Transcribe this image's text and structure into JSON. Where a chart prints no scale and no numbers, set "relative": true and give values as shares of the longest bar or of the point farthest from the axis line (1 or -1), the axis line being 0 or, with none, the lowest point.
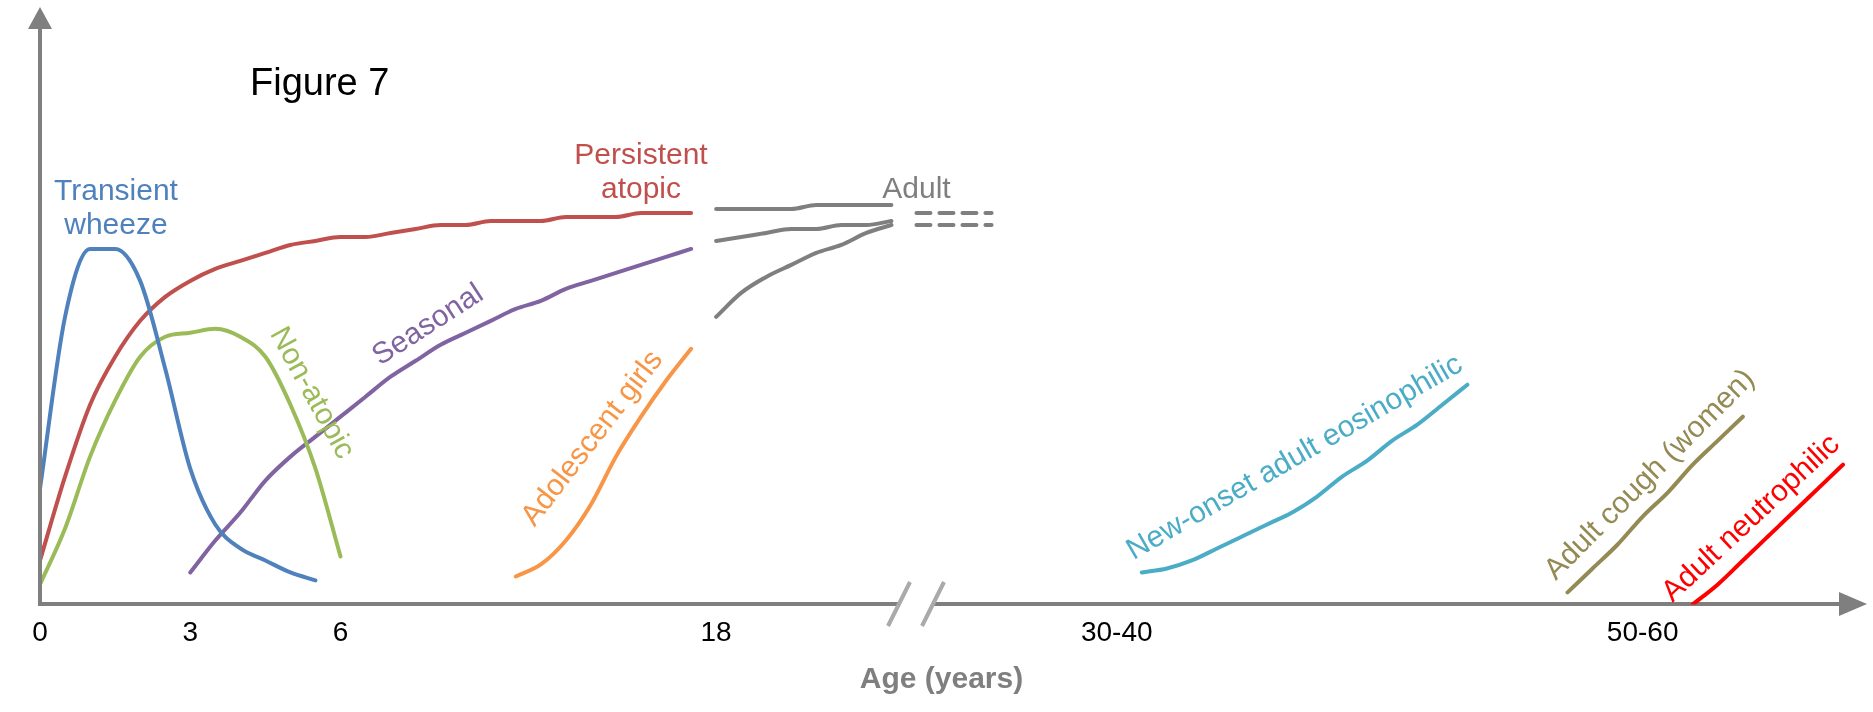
{
  "chart_data": {
    "type": "line",
    "title": "Figure 7",
    "xlabel": "Age (years)",
    "relative": true,
    "legend": false,
    "grid": false,
    "tick_labels": "x",
    "marker": "none",
    "line_style": "solid",
    "categories": [
      "0",
      null,
      null,
      null,
      null,
      null,
      "3",
      null,
      null,
      null,
      null,
      null,
      "6",
      null,
      null,
      null,
      null,
      null,
      null,
      null,
      null,
      null,
      null,
      null,
      null,
      null,
      null,
      "18",
      null,
      null,
      null,
      null,
      null,
      null,
      null,
      null,
      null,
      null,
      null,
      null,
      null,
      null,
      null,
      "30-40",
      null,
      null,
      null,
      null,
      null,
      null,
      null,
      null,
      null,
      null,
      null,
      null,
      null,
      null,
      null,
      null,
      null,
      null,
      null,
      null,
      "50-60",
      null,
      null,
      null,
      null,
      null,
      null,
      null,
      null
    ],
    "series": [
      {
        "name": "Transient wheeze",
        "color": "#4f81bd",
        "values": [
          0.29,
          0.72,
          0.89,
          0.89,
          0.81,
          0.59,
          0.34,
          0.2,
          0.14,
          0.11,
          0.08,
          0.06,
          null,
          null,
          null,
          null,
          null,
          null,
          null,
          null,
          null,
          null,
          null,
          null,
          null,
          null,
          null,
          null,
          null,
          null,
          null,
          null,
          null,
          null,
          null,
          null,
          null,
          null,
          null,
          null,
          null,
          null,
          null,
          null,
          null,
          null,
          null,
          null,
          null,
          null,
          null,
          null,
          null,
          null,
          null,
          null,
          null,
          null,
          null,
          null,
          null,
          null,
          null,
          null,
          null,
          null,
          null,
          null,
          null,
          null,
          null,
          null,
          null
        ]
      },
      {
        "name": "Persistent atopic",
        "color": "#c0504d",
        "values": [
          0.11,
          0.32,
          0.5,
          0.62,
          0.71,
          0.77,
          0.81,
          0.84,
          0.86,
          0.88,
          0.9,
          0.91,
          0.92,
          0.92,
          0.93,
          0.94,
          0.95,
          0.95,
          0.96,
          0.96,
          0.96,
          0.97,
          0.97,
          0.97,
          0.98,
          0.98,
          0.98,
          null,
          null,
          null,
          null,
          null,
          null,
          null,
          null,
          null,
          null,
          null,
          null,
          null,
          null,
          null,
          null,
          null,
          null,
          null,
          null,
          null,
          null,
          null,
          null,
          null,
          null,
          null,
          null,
          null,
          null,
          null,
          null,
          null,
          null,
          null,
          null,
          null,
          null,
          null,
          null,
          null,
          null,
          null,
          null,
          null,
          null
        ]
      },
      {
        "name": "Non-atopic",
        "color": "#9bbb59",
        "values": [
          0.05,
          0.19,
          0.37,
          0.51,
          0.62,
          0.67,
          0.68,
          0.69,
          0.67,
          0.62,
          0.5,
          0.34,
          0.12,
          null,
          null,
          null,
          null,
          null,
          null,
          null,
          null,
          null,
          null,
          null,
          null,
          null,
          null,
          null,
          null,
          null,
          null,
          null,
          null,
          null,
          null,
          null,
          null,
          null,
          null,
          null,
          null,
          null,
          null,
          null,
          null,
          null,
          null,
          null,
          null,
          null,
          null,
          null,
          null,
          null,
          null,
          null,
          null,
          null,
          null,
          null,
          null,
          null,
          null,
          null,
          null,
          null,
          null,
          null,
          null,
          null,
          null,
          null,
          null
        ]
      },
      {
        "name": "Seasonal",
        "color": "#8064a2",
        "values": [
          null,
          null,
          null,
          null,
          null,
          null,
          0.08,
          0.16,
          0.23,
          0.31,
          0.37,
          0.42,
          0.47,
          0.52,
          0.57,
          0.61,
          0.65,
          0.68,
          0.71,
          0.74,
          0.76,
          0.79,
          0.81,
          0.83,
          0.85,
          0.87,
          0.89,
          null,
          null,
          null,
          null,
          null,
          null,
          null,
          null,
          null,
          null,
          null,
          null,
          null,
          null,
          null,
          null,
          null,
          null,
          null,
          null,
          null,
          null,
          null,
          null,
          null,
          null,
          null,
          null,
          null,
          null,
          null,
          null,
          null,
          null,
          null,
          null,
          null,
          null,
          null,
          null,
          null,
          null,
          null,
          null,
          null,
          null
        ]
      },
      {
        "name": "Adolescent girls",
        "color": "#f79646",
        "values": [
          null,
          null,
          null,
          null,
          null,
          null,
          null,
          null,
          null,
          null,
          null,
          null,
          null,
          null,
          null,
          null,
          null,
          null,
          null,
          0.07,
          0.1,
          0.16,
          0.25,
          0.37,
          0.47,
          0.56,
          0.64,
          null,
          null,
          null,
          null,
          null,
          null,
          null,
          null,
          null,
          null,
          null,
          null,
          null,
          null,
          null,
          null,
          null,
          null,
          null,
          null,
          null,
          null,
          null,
          null,
          null,
          null,
          null,
          null,
          null,
          null,
          null,
          null,
          null,
          null,
          null,
          null,
          null,
          null,
          null,
          null,
          null,
          null,
          null,
          null,
          null,
          null
        ]
      },
      {
        "color": "#7f7f7f",
        "values": [
          null,
          null,
          null,
          null,
          null,
          null,
          null,
          null,
          null,
          null,
          null,
          null,
          null,
          null,
          null,
          null,
          null,
          null,
          null,
          null,
          null,
          null,
          null,
          null,
          null,
          null,
          null,
          0.99,
          0.99,
          0.99,
          0.99,
          1,
          1,
          1,
          1,
          null,
          null,
          null,
          null,
          null,
          null,
          null,
          null,
          null,
          null,
          null,
          null,
          null,
          null,
          null,
          null,
          null,
          null,
          null,
          null,
          null,
          null,
          null,
          null,
          null,
          null,
          null,
          null,
          null,
          null,
          null,
          null,
          null,
          null,
          null,
          null,
          null,
          null
        ]
      },
      {
        "color": "#7f7f7f",
        "values": [
          null,
          null,
          null,
          null,
          null,
          null,
          null,
          null,
          null,
          null,
          null,
          null,
          null,
          null,
          null,
          null,
          null,
          null,
          null,
          null,
          null,
          null,
          null,
          null,
          null,
          null,
          null,
          0.91,
          0.92,
          0.93,
          0.94,
          0.94,
          0.95,
          0.95,
          0.96,
          null,
          null,
          null,
          null,
          null,
          null,
          null,
          null,
          null,
          null,
          null,
          null,
          null,
          null,
          null,
          null,
          null,
          null,
          null,
          null,
          null,
          null,
          null,
          null,
          null,
          null,
          null,
          null,
          null,
          null,
          null,
          null,
          null,
          null,
          null,
          null,
          null,
          null
        ]
      },
      {
        "color": "#7f7f7f",
        "values": [
          null,
          null,
          null,
          null,
          null,
          null,
          null,
          null,
          null,
          null,
          null,
          null,
          null,
          null,
          null,
          null,
          null,
          null,
          null,
          null,
          null,
          null,
          null,
          null,
          null,
          null,
          null,
          0.72,
          0.78,
          0.82,
          0.85,
          0.88,
          0.9,
          0.93,
          0.95,
          null,
          null,
          null,
          null,
          null,
          null,
          null,
          null,
          null,
          null,
          null,
          null,
          null,
          null,
          null,
          null,
          null,
          null,
          null,
          null,
          null,
          null,
          null,
          null,
          null,
          null,
          null,
          null,
          null,
          null,
          null,
          null,
          null,
          null,
          null,
          null,
          null,
          null
        ]
      },
      {
        "name": "Adult",
        "color": "#7f7f7f",
        "line_style": "dashed",
        "values": [
          null,
          null,
          null,
          null,
          null,
          null,
          null,
          null,
          null,
          null,
          null,
          null,
          null,
          null,
          null,
          null,
          null,
          null,
          null,
          null,
          null,
          null,
          null,
          null,
          null,
          null,
          null,
          null,
          null,
          null,
          null,
          null,
          null,
          null,
          null,
          0.98,
          0.98,
          0.98,
          0.98,
          null,
          null,
          null,
          null,
          null,
          null,
          null,
          null,
          null,
          null,
          null,
          null,
          null,
          null,
          null,
          null,
          null,
          null,
          null,
          null,
          null,
          null,
          null,
          null,
          null,
          null,
          null,
          null,
          null,
          null,
          null,
          null,
          null,
          null
        ]
      },
      {
        "color": "#7f7f7f",
        "line_style": "dashed",
        "values": [
          null,
          null,
          null,
          null,
          null,
          null,
          null,
          null,
          null,
          null,
          null,
          null,
          null,
          null,
          null,
          null,
          null,
          null,
          null,
          null,
          null,
          null,
          null,
          null,
          null,
          null,
          null,
          null,
          null,
          null,
          null,
          null,
          null,
          null,
          null,
          0.95,
          0.95,
          0.95,
          0.95,
          null,
          null,
          null,
          null,
          null,
          null,
          null,
          null,
          null,
          null,
          null,
          null,
          null,
          null,
          null,
          null,
          null,
          null,
          null,
          null,
          null,
          null,
          null,
          null,
          null,
          null,
          null,
          null,
          null,
          null,
          null,
          null,
          null,
          null
        ]
      },
      {
        "name": "New-onset adult eosinophilic",
        "color": "#4bacc6",
        "values": [
          null,
          null,
          null,
          null,
          null,
          null,
          null,
          null,
          null,
          null,
          null,
          null,
          null,
          null,
          null,
          null,
          null,
          null,
          null,
          null,
          null,
          null,
          null,
          null,
          null,
          null,
          null,
          null,
          null,
          null,
          null,
          null,
          null,
          null,
          null,
          null,
          null,
          null,
          null,
          null,
          null,
          null,
          null,
          null,
          0.08,
          0.09,
          0.11,
          0.14,
          0.17,
          0.2,
          0.23,
          0.27,
          0.32,
          0.36,
          0.41,
          0.45,
          0.5,
          0.55,
          null,
          null,
          null,
          null,
          null,
          null,
          null,
          null,
          null,
          null,
          null,
          null,
          null,
          null,
          null
        ]
      },
      {
        "name": "Adult cough (women)",
        "color": "#948a54",
        "values": [
          null,
          null,
          null,
          null,
          null,
          null,
          null,
          null,
          null,
          null,
          null,
          null,
          null,
          null,
          null,
          null,
          null,
          null,
          null,
          null,
          null,
          null,
          null,
          null,
          null,
          null,
          null,
          null,
          null,
          null,
          null,
          null,
          null,
          null,
          null,
          null,
          null,
          null,
          null,
          null,
          null,
          null,
          null,
          null,
          null,
          null,
          null,
          null,
          null,
          null,
          null,
          null,
          null,
          null,
          null,
          null,
          null,
          null,
          null,
          null,
          null,
          0.03,
          0.09,
          0.15,
          0.22,
          0.28,
          0.35,
          0.41,
          0.47,
          null,
          null,
          null,
          null
        ]
      },
      {
        "name": "Adult neutrophilic",
        "color": "#ff0000",
        "values": [
          null,
          null,
          null,
          null,
          null,
          null,
          null,
          null,
          null,
          null,
          null,
          null,
          null,
          null,
          null,
          null,
          null,
          null,
          null,
          null,
          null,
          null,
          null,
          null,
          null,
          null,
          null,
          null,
          null,
          null,
          null,
          null,
          null,
          null,
          null,
          null,
          null,
          null,
          null,
          null,
          null,
          null,
          null,
          null,
          null,
          null,
          null,
          null,
          null,
          null,
          null,
          null,
          null,
          null,
          null,
          null,
          null,
          null,
          null,
          null,
          null,
          null,
          null,
          null,
          null,
          null,
          0,
          0.05,
          0.11,
          0.17,
          0.23,
          0.29,
          0.35
        ]
      }
    ]
  }
}
